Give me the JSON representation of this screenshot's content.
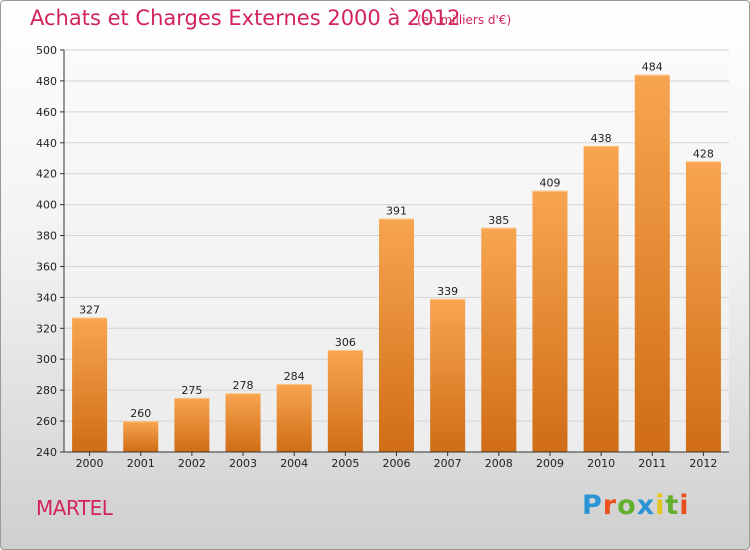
{
  "chart_data": {
    "type": "bar",
    "title": "Achats et Charges Externes 2000 à 2012",
    "subtitle": "(en milliers d'€)",
    "categories": [
      "2000",
      "2001",
      "2002",
      "2003",
      "2004",
      "2005",
      "2006",
      "2007",
      "2008",
      "2009",
      "2010",
      "2011",
      "2012"
    ],
    "values": [
      327,
      260,
      275,
      278,
      284,
      306,
      391,
      339,
      385,
      409,
      438,
      484,
      428
    ],
    "ylim": [
      240,
      500
    ],
    "yticks": [
      240,
      260,
      280,
      300,
      320,
      340,
      360,
      380,
      400,
      420,
      440,
      460,
      480,
      500
    ],
    "xlabel": "",
    "ylabel": "",
    "grid": true,
    "colors": {
      "bar_light": "#f8a550",
      "bar_dark": "#d06d16",
      "title": "#d3245a"
    }
  },
  "footer": {
    "town": "MARTEL",
    "brand": "Proxiti",
    "brand_colors": [
      "#2a94d6",
      "#e8511c",
      "#63b02f",
      "#2a94d6",
      "#e8c51c",
      "#63b02f",
      "#e8511c"
    ]
  }
}
